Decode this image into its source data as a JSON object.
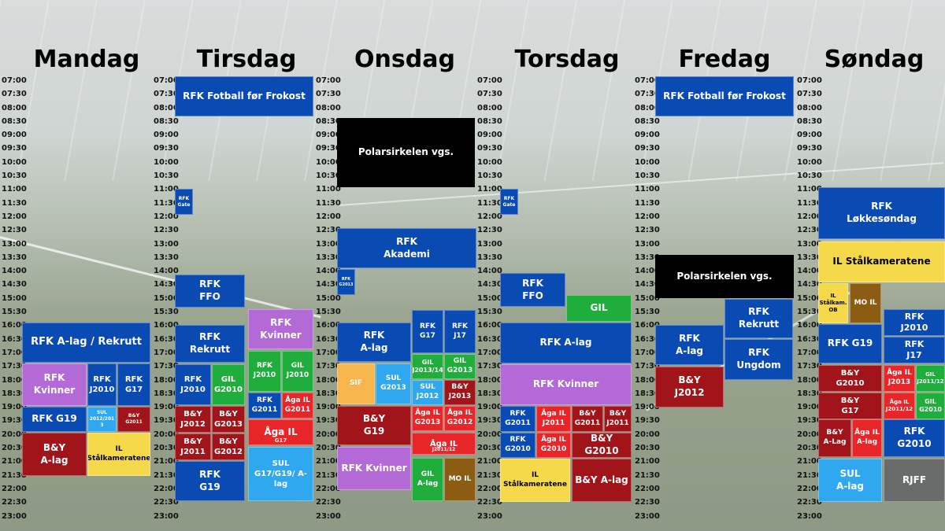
{
  "colors": {
    "blue": "#0a4bb3",
    "black": "#000000",
    "purple": "#b46ad6",
    "darkred": "#a0141a",
    "red": "#e8262a",
    "green": "#1fae3c",
    "yellow": "#f6d94a",
    "lightblue": "#2fa8ef",
    "orange": "#f6b54d",
    "brown": "#8c5c12",
    "gray": "#6a6b6b"
  },
  "days": [
    "Mandag",
    "Tirsdag",
    "Onsdag",
    "Torsdag",
    "Fredag",
    "Søndag"
  ],
  "times": [
    "07:00",
    "07:30",
    "08:00",
    "08:30",
    "09:00",
    "09:30",
    "10:00",
    "10:30",
    "11:00",
    "11:30",
    "12:00",
    "12:30",
    "13:00",
    "13:30",
    "14:00",
    "14:30",
    "15:00",
    "15:30",
    "16:00",
    "16:30",
    "17:00",
    "17:30",
    "18:00",
    "18:30",
    "19:00",
    "19:30",
    "20:00",
    "20:30",
    "21:00",
    "21:30",
    "22:00",
    "22:30",
    "23:00"
  ],
  "blocks": [
    {
      "day": 0,
      "text": "RFK A-lag / Rekrutt",
      "color": "blue",
      "fs": 13
    },
    {
      "day": 0,
      "text": "RFK Kvinner",
      "color": "purple",
      "fs": 12
    },
    {
      "day": 0,
      "text": "RFK\nJ2010",
      "color": "blue",
      "fs": 10
    },
    {
      "day": 0,
      "text": "RFK\nG17",
      "color": "blue",
      "fs": 10
    },
    {
      "day": 0,
      "text": "RFK G19",
      "color": "blue",
      "fs": 12
    },
    {
      "day": 0,
      "text": "SUL\n2012/201\n3",
      "color": "lightblue",
      "fs": 6
    },
    {
      "day": 0,
      "text": "B&Y\nG2011",
      "color": "darkred",
      "fs": 6
    },
    {
      "day": 0,
      "text": "B&Y\nA-lag",
      "color": "darkred",
      "fs": 12
    },
    {
      "day": 0,
      "text": "IL\nStålkameratene",
      "color": "yellow",
      "fs": 9,
      "dark": true
    },
    {
      "day": 1,
      "text": "RFK Fotball før Frokost",
      "color": "blue",
      "fs": 12
    },
    {
      "day": 1,
      "text": "RFK\nGate",
      "color": "blue",
      "fs": 6
    },
    {
      "day": 1,
      "text": "RFK\nFFO",
      "color": "blue",
      "fs": 12
    },
    {
      "day": 1,
      "text": "RFK\nRekrutt",
      "color": "blue",
      "fs": 12
    },
    {
      "day": 1,
      "text": "RFK Kvinner",
      "color": "purple",
      "fs": 12
    },
    {
      "day": 1,
      "text": "RFK\nJ2010",
      "color": "blue",
      "fs": 10
    },
    {
      "day": 1,
      "text": "GIL\nG2010",
      "color": "green",
      "fs": 10
    },
    {
      "day": 1,
      "text": "RFK\nJ2010",
      "color": "green",
      "fs": 9
    },
    {
      "day": 1,
      "text": "GIL\nJ2010",
      "color": "green",
      "fs": 9
    },
    {
      "day": 1,
      "text": "RFK\nG2011",
      "color": "blue",
      "fs": 9
    },
    {
      "day": 1,
      "text": "Åga IL\nG2011",
      "color": "red",
      "fs": 9
    },
    {
      "day": 1,
      "text": "B&Y\nJ2012",
      "color": "darkred",
      "fs": 10
    },
    {
      "day": 1,
      "text": "B&Y\nG2013",
      "color": "darkred",
      "fs": 10
    },
    {
      "day": 1,
      "text": "Åga IL",
      "color": "red",
      "fs": 12
    },
    {
      "day": 1,
      "text": "G17",
      "color": "red",
      "fs": 7
    },
    {
      "day": 1,
      "text": "B&Y\nJ2011",
      "color": "darkred",
      "fs": 10
    },
    {
      "day": 1,
      "text": "B&Y\nG2012",
      "color": "darkred",
      "fs": 10
    },
    {
      "day": 1,
      "text": "RFK\nG19",
      "color": "blue",
      "fs": 12
    },
    {
      "day": 1,
      "text": "SUL\nG17/G19/ A-lag",
      "color": "lightblue",
      "fs": 10
    },
    {
      "day": 2,
      "text": "Polarsirkelen vgs.",
      "color": "black",
      "fs": 12
    },
    {
      "day": 2,
      "text": "RFK\nAkademi",
      "color": "blue",
      "fs": 12
    },
    {
      "day": 2,
      "text": "RFK\nG2013",
      "color": "blue",
      "fs": 5
    },
    {
      "day": 2,
      "text": "RFK\nA-lag",
      "color": "blue",
      "fs": 12
    },
    {
      "day": 2,
      "text": "RFK\nG17",
      "color": "blue",
      "fs": 9
    },
    {
      "day": 2,
      "text": "RFK\nJ17",
      "color": "blue",
      "fs": 9
    },
    {
      "day": 2,
      "text": "GIL\nJ2013/14",
      "color": "green",
      "fs": 8
    },
    {
      "day": 2,
      "text": "GIL\nG2013",
      "color": "green",
      "fs": 9
    },
    {
      "day": 2,
      "text": "SIF",
      "color": "orange",
      "fs": 9
    },
    {
      "day": 2,
      "text": "SUL\nG2013",
      "color": "lightblue",
      "fs": 9
    },
    {
      "day": 2,
      "text": "SUL\nJ2012",
      "color": "lightblue",
      "fs": 9
    },
    {
      "day": 2,
      "text": "B&Y\nJ2013",
      "color": "darkred",
      "fs": 9
    },
    {
      "day": 2,
      "text": "B&Y\nG19",
      "color": "darkred",
      "fs": 12
    },
    {
      "day": 2,
      "text": "Åga IL\nG2013",
      "color": "red",
      "fs": 9
    },
    {
      "day": 2,
      "text": "Åga IL\nG2012",
      "color": "red",
      "fs": 9
    },
    {
      "day": 2,
      "text": "Åga IL",
      "color": "red",
      "fs": 10
    },
    {
      "day": 2,
      "text": "J2011/12",
      "color": "red",
      "fs": 6
    },
    {
      "day": 2,
      "text": "RFK Kvinner",
      "color": "purple",
      "fs": 12
    },
    {
      "day": 2,
      "text": "GIL\nA-lag",
      "color": "green",
      "fs": 9
    },
    {
      "day": 2,
      "text": "MO IL",
      "color": "brown",
      "fs": 9
    },
    {
      "day": 3,
      "text": "RFK\nGate",
      "color": "blue",
      "fs": 6
    },
    {
      "day": 3,
      "text": "RFK\nFFO",
      "color": "blue",
      "fs": 12
    },
    {
      "day": 3,
      "text": "GIL",
      "color": "green",
      "fs": 12
    },
    {
      "day": 3,
      "text": "RFK A-lag",
      "color": "blue",
      "fs": 12
    },
    {
      "day": 3,
      "text": "RFK Kvinner",
      "color": "purple",
      "fs": 12
    },
    {
      "day": 3,
      "text": "RFK\nG2011",
      "color": "blue",
      "fs": 9
    },
    {
      "day": 3,
      "text": "Åga IL\nJ2011",
      "color": "red",
      "fs": 9
    },
    {
      "day": 3,
      "text": "B&Y\nG2011",
      "color": "darkred",
      "fs": 9
    },
    {
      "day": 3,
      "text": "B&Y\nJ2011",
      "color": "darkred",
      "fs": 9
    },
    {
      "day": 3,
      "text": "RFK\nG2010",
      "color": "blue",
      "fs": 9
    },
    {
      "day": 3,
      "text": "Åga IL\nG2010",
      "color": "red",
      "fs": 9
    },
    {
      "day": 3,
      "text": "B&Y G2010",
      "color": "darkred",
      "fs": 12
    },
    {
      "day": 3,
      "text": "IL\nStålkameratene",
      "color": "yellow",
      "fs": 9,
      "dark": true
    },
    {
      "day": 3,
      "text": "B&Y A-lag",
      "color": "darkred",
      "fs": 12
    },
    {
      "day": 4,
      "text": "RFK Fotball før Frokost",
      "color": "blue",
      "fs": 12
    },
    {
      "day": 4,
      "text": "Polarsirkelen vgs.",
      "color": "black",
      "fs": 12
    },
    {
      "day": 4,
      "text": "RFK\nRekrutt",
      "color": "blue",
      "fs": 12
    },
    {
      "day": 4,
      "text": "RFK\nA-lag",
      "color": "blue",
      "fs": 12
    },
    {
      "day": 4,
      "text": "RFK\nUngdom",
      "color": "blue",
      "fs": 12
    },
    {
      "day": 4,
      "text": "B&Y\nJ2012",
      "color": "darkred",
      "fs": 12
    },
    {
      "day": 5,
      "text": "RFK\nLøkkesøndag",
      "color": "blue",
      "fs": 12
    },
    {
      "day": 5,
      "text": "IL Stålkameratene",
      "color": "yellow",
      "fs": 12,
      "dark": true
    },
    {
      "day": 5,
      "text": "IL\nStålkam.\nOB",
      "color": "yellow",
      "fs": 7,
      "dark": true
    },
    {
      "day": 5,
      "text": "MO IL",
      "color": "brown",
      "fs": 9
    },
    {
      "day": 5,
      "text": "RFK\nJ2010",
      "color": "blue",
      "fs": 11
    },
    {
      "day": 5,
      "text": "RFK G19",
      "color": "blue",
      "fs": 12
    },
    {
      "day": 5,
      "text": "RFK\nJ17",
      "color": "blue",
      "fs": 11
    },
    {
      "day": 5,
      "text": "B&Y\nG2010",
      "color": "darkred",
      "fs": 10
    },
    {
      "day": 5,
      "text": "Åga IL\nJ2013",
      "color": "red",
      "fs": 9
    },
    {
      "day": 5,
      "text": "GIL\nJ2011/12",
      "color": "green",
      "fs": 7
    },
    {
      "day": 5,
      "text": "B&Y\nG17",
      "color": "darkred",
      "fs": 10
    },
    {
      "day": 5,
      "text": "Åga IL\nJ2011/12",
      "color": "red",
      "fs": 7
    },
    {
      "day": 5,
      "text": "GIL\nG2010",
      "color": "green",
      "fs": 8
    },
    {
      "day": 5,
      "text": "B&Y\nA-Lag",
      "color": "darkred",
      "fs": 9
    },
    {
      "day": 5,
      "text": "Åga IL\nA-lag",
      "color": "red",
      "fs": 9
    },
    {
      "day": 5,
      "text": "RFK\nG2010",
      "color": "blue",
      "fs": 12
    },
    {
      "day": 5,
      "text": "SUL\nA-lag",
      "color": "lightblue",
      "fs": 12
    },
    {
      "day": 5,
      "text": "RJFF",
      "color": "gray",
      "fs": 12
    }
  ]
}
